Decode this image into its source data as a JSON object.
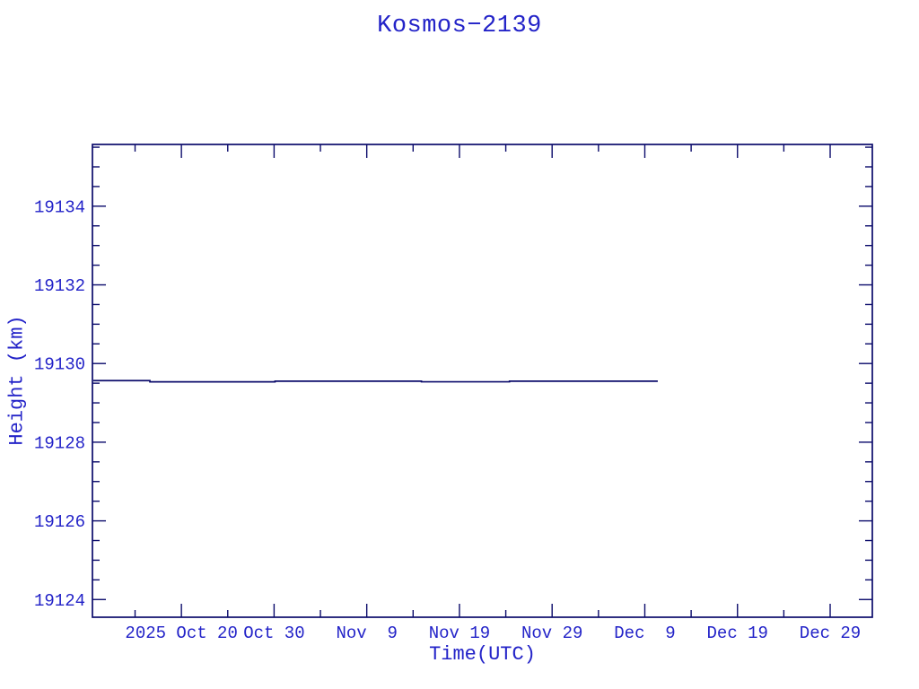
{
  "window": {
    "background": "#ffffff"
  },
  "chart_data": {
    "type": "line",
    "title": "Kosmos−2139",
    "xlabel": "Time(UTC)",
    "ylabel": "Height (km)",
    "grid": false,
    "legend": false,
    "colors": {
      "background": "#ffffff",
      "text": "#2323c8",
      "axis": "#0b0b6b",
      "line": "#0b0b6b"
    },
    "x_axis": {
      "unit": "days relative to 2025 Oct 20 00:00 UTC",
      "domain": [
        -9.6,
        74.55
      ],
      "major_ticks": [
        {
          "value": 0,
          "label": "2025 Oct 20"
        },
        {
          "value": 10,
          "label": "Oct 30"
        },
        {
          "value": 20,
          "label": "Nov  9"
        },
        {
          "value": 30,
          "label": "Nov 19"
        },
        {
          "value": 40,
          "label": "Nov 29"
        },
        {
          "value": 50,
          "label": "Dec  9"
        },
        {
          "value": 60,
          "label": "Dec 19"
        },
        {
          "value": 70,
          "label": "Dec 29"
        }
      ],
      "minor_ticks": [
        -5,
        5,
        15,
        25,
        35,
        45,
        55,
        65
      ]
    },
    "y_axis": {
      "unit": "km",
      "domain": [
        19123.55,
        19135.57
      ],
      "major_ticks": [
        {
          "value": 19124,
          "label": "19124"
        },
        {
          "value": 19126,
          "label": "19126"
        },
        {
          "value": 19128,
          "label": "19128"
        },
        {
          "value": 19130,
          "label": "19130"
        },
        {
          "value": 19132,
          "label": "19132"
        },
        {
          "value": 19134,
          "label": "19134"
        }
      ],
      "minor_tick_step": 0.5
    },
    "series": [
      {
        "name": "orbit-height",
        "points": [
          [
            -9.5,
            19129.565
          ],
          [
            -3.4,
            19129.565
          ],
          [
            -3.4,
            19129.535
          ],
          [
            10.1,
            19129.535
          ],
          [
            10.1,
            19129.551
          ],
          [
            25.9,
            19129.551
          ],
          [
            25.9,
            19129.536
          ],
          [
            35.4,
            19129.536
          ],
          [
            35.4,
            19129.551
          ],
          [
            51.4,
            19129.551
          ]
        ]
      }
    ]
  }
}
